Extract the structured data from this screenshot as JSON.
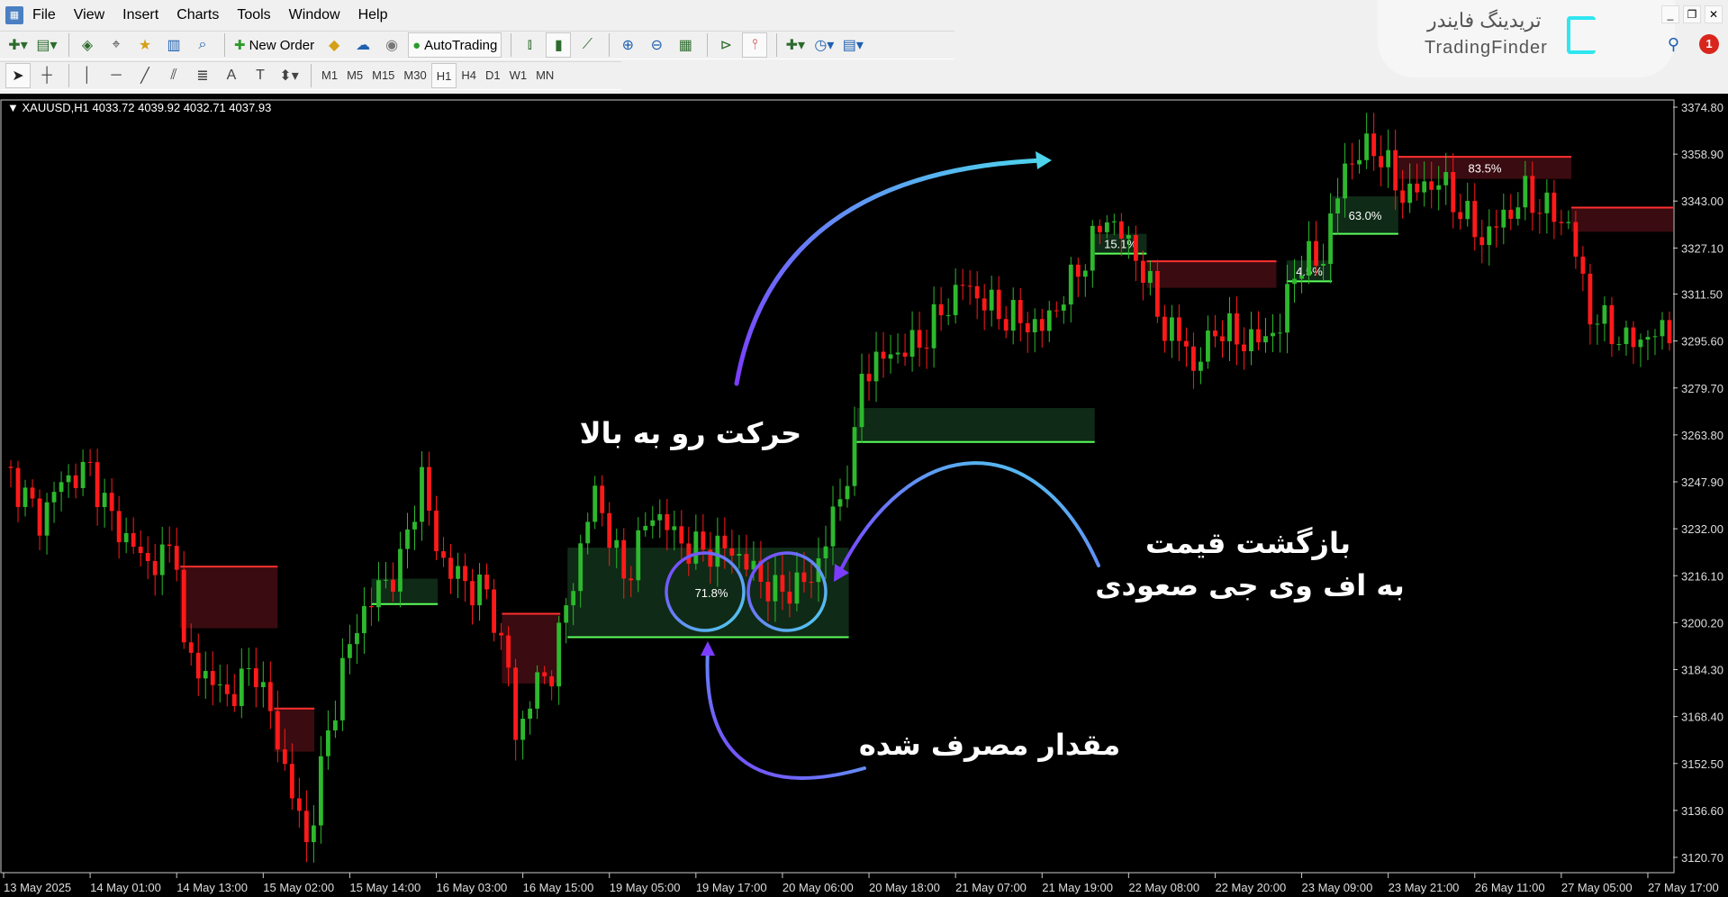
{
  "menu": {
    "items": [
      "File",
      "View",
      "Insert",
      "Charts",
      "Tools",
      "Window",
      "Help"
    ]
  },
  "toolbar": {
    "new_order": "New Order",
    "autotrading": "AutoTrading",
    "timeframes": [
      "M1",
      "M5",
      "M15",
      "M30",
      "H1",
      "H4",
      "D1",
      "W1",
      "MN"
    ],
    "active_timeframe": "H1"
  },
  "logo": {
    "fa": "تریدینگ فایندر",
    "en": "TradingFinder",
    "color": "#2ee6f0"
  },
  "notifications": {
    "count": "1"
  },
  "chart_data": {
    "type": "candlestick",
    "symbol_line": "XAUUSD,H1  4033.72 4039.92 4032.71 4037.93",
    "ylim": [
      3120.7,
      3374.8
    ],
    "y_ticks": [
      "3374.80",
      "3358.90",
      "3343.00",
      "3327.10",
      "3311.50",
      "3295.60",
      "3279.70",
      "3263.80",
      "3247.90",
      "3232.00",
      "3216.10",
      "3200.20",
      "3184.30",
      "3168.40",
      "3152.50",
      "3136.60",
      "3120.70"
    ],
    "x_ticks": [
      "13 May 2025",
      "14 May 01:00",
      "14 May 13:00",
      "15 May 02:00",
      "15 May 14:00",
      "16 May 03:00",
      "16 May 15:00",
      "19 May 05:00",
      "19 May 17:00",
      "20 May 06:00",
      "20 May 18:00",
      "21 May 07:00",
      "21 May 19:00",
      "22 May 08:00",
      "22 May 20:00",
      "23 May 09:00",
      "23 May 21:00",
      "26 May 11:00",
      "27 May 05:00",
      "27 May 17:00"
    ],
    "bars_total": 232,
    "bars_per_tick": 12,
    "close_path": [
      [
        1,
        3250
      ],
      [
        5,
        3235
      ],
      [
        8,
        3248
      ],
      [
        12,
        3252
      ],
      [
        15,
        3235
      ],
      [
        20,
        3220
      ],
      [
        24,
        3225
      ],
      [
        25,
        3190
      ],
      [
        31,
        3175
      ],
      [
        35,
        3185
      ],
      [
        38,
        3160
      ],
      [
        42,
        3125
      ],
      [
        44,
        3150
      ],
      [
        47,
        3185
      ],
      [
        50,
        3205
      ],
      [
        55,
        3220
      ],
      [
        58,
        3250
      ],
      [
        60,
        3225
      ],
      [
        63,
        3215
      ],
      [
        67,
        3210
      ],
      [
        70,
        3185
      ],
      [
        71,
        3160
      ],
      [
        73,
        3175
      ],
      [
        76,
        3185
      ],
      [
        80,
        3225
      ],
      [
        82,
        3245
      ],
      [
        86,
        3215
      ],
      [
        90,
        3238
      ],
      [
        95,
        3225
      ],
      [
        101,
        3225
      ],
      [
        107,
        3210
      ],
      [
        112,
        3215
      ],
      [
        115,
        3235
      ],
      [
        118,
        3260
      ],
      [
        119,
        3285
      ],
      [
        122,
        3290
      ],
      [
        127,
        3295
      ],
      [
        133,
        3315
      ],
      [
        138,
        3305
      ],
      [
        144,
        3300
      ],
      [
        148,
        3315
      ],
      [
        153,
        3338
      ],
      [
        157,
        3325
      ],
      [
        161,
        3300
      ],
      [
        164,
        3295
      ],
      [
        165,
        3285
      ],
      [
        168,
        3300
      ],
      [
        173,
        3295
      ],
      [
        177,
        3300
      ],
      [
        179,
        3320
      ],
      [
        183,
        3325
      ],
      [
        186,
        3355
      ],
      [
        190,
        3362
      ],
      [
        194,
        3345
      ],
      [
        199,
        3350
      ],
      [
        205,
        3330
      ],
      [
        211,
        3345
      ],
      [
        217,
        3335
      ],
      [
        220,
        3305
      ],
      [
        225,
        3295
      ],
      [
        232,
        3300
      ]
    ],
    "zones": [
      {
        "type": "bearish",
        "from": 25,
        "to": 38.5,
        "top": 3219.2,
        "bottom": 3198.3,
        "label": ""
      },
      {
        "type": "bearish",
        "from": 38,
        "to": 43.6,
        "top": 3171.1,
        "bottom": 3156.5,
        "label": ""
      },
      {
        "type": "bullish",
        "from": 51.5,
        "to": 60.7,
        "top": 3215.1,
        "bottom": 3206.5,
        "label": ""
      },
      {
        "type": "bearish",
        "from": 69.6,
        "to": 77.7,
        "top": 3203.2,
        "bottom": 3179.6,
        "label": ""
      },
      {
        "type": "bullish",
        "from": 78.7,
        "to": 117.7,
        "top": 3225.6,
        "bottom": 3195.3,
        "label": "71.8%"
      },
      {
        "type": "bullish",
        "from": 118.8,
        "to": 151.8,
        "top": 3272.9,
        "bottom": 3261.4,
        "label": ""
      },
      {
        "type": "bullish",
        "from": 151.8,
        "to": 159,
        "top": 3331.9,
        "bottom": 3325.2,
        "label": "15.1%"
      },
      {
        "type": "bearish",
        "from": 159,
        "to": 177,
        "top": 3322.6,
        "bottom": 3313.6,
        "label": ""
      },
      {
        "type": "bullish",
        "from": 178.4,
        "to": 184.7,
        "top": 3322.9,
        "bottom": 3315.8,
        "label": "4.5%"
      },
      {
        "type": "bullish",
        "from": 184.7,
        "to": 193.9,
        "top": 3344.6,
        "bottom": 3331.9,
        "label": "63.0%"
      },
      {
        "type": "bearish",
        "from": 193.9,
        "to": 217.9,
        "top": 3358.0,
        "bottom": 3350.5,
        "label": "83.5%"
      },
      {
        "type": "bearish",
        "from": 217.9,
        "to": 232,
        "top": 3340.8,
        "bottom": 3332.6,
        "label": ""
      }
    ],
    "colors": {
      "up": "#2db82d",
      "down": "#ff1a1a",
      "bull_zone": "#0f2a16",
      "bull_line": "#5cff5c",
      "bear_zone": "#3a0b10",
      "bear_line": "#ff3030",
      "grid": false
    }
  },
  "annotations": {
    "move_up": "حرکت رو به بالا",
    "return_line1": "بازگشت قیمت",
    "return_line2": "به اف وی جی صعودی",
    "consumed": "مقدار مصرف شده"
  }
}
